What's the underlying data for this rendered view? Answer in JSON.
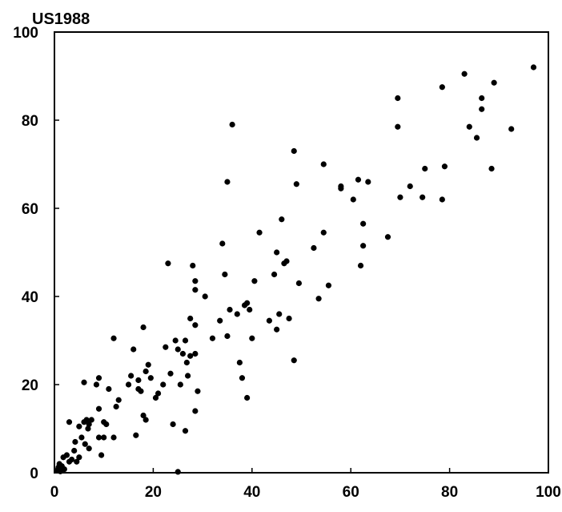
{
  "chart_data": {
    "type": "scatter",
    "title": "",
    "xlabel": "",
    "ylabel": "US1988",
    "xlim": [
      0,
      100
    ],
    "ylim": [
      0,
      100
    ],
    "xticks": [
      "0",
      "20",
      "40",
      "60",
      "80",
      "100"
    ],
    "yticks": [
      "0",
      "20",
      "40",
      "60",
      "80",
      "100"
    ],
    "grid": false,
    "legend": "none",
    "marker_color": "#000000",
    "series": [
      {
        "points": [
          [
            0.5,
            0.5
          ],
          [
            0.8,
            1.2
          ],
          [
            1,
            2
          ],
          [
            1.2,
            0.3
          ],
          [
            1.5,
            1.5
          ],
          [
            2,
            0.8
          ],
          [
            1.8,
            3.5
          ],
          [
            2.5,
            4
          ],
          [
            3,
            2.5
          ],
          [
            3.5,
            3
          ],
          [
            3,
            11.5
          ],
          [
            4,
            5
          ],
          [
            4.2,
            7
          ],
          [
            4.5,
            2.5
          ],
          [
            5,
            10.5
          ],
          [
            5,
            3.5
          ],
          [
            5.5,
            8
          ],
          [
            6,
            11.5
          ],
          [
            6.2,
            6.5
          ],
          [
            6.5,
            12
          ],
          [
            6.8,
            10
          ],
          [
            7,
            11
          ],
          [
            7.5,
            12
          ],
          [
            6,
            20.5
          ],
          [
            7,
            5.5
          ],
          [
            8.5,
            20
          ],
          [
            9,
            21.5
          ],
          [
            9.5,
            4
          ],
          [
            9,
            8
          ],
          [
            9,
            14.5
          ],
          [
            10,
            8
          ],
          [
            10,
            11.5
          ],
          [
            11,
            19
          ],
          [
            10.5,
            11
          ],
          [
            12,
            30.5
          ],
          [
            12.5,
            15
          ],
          [
            13,
            16.5
          ],
          [
            12,
            8
          ],
          [
            15,
            20
          ],
          [
            15.5,
            22
          ],
          [
            16,
            28
          ],
          [
            16.5,
            8.5
          ],
          [
            17,
            19
          ],
          [
            17,
            21
          ],
          [
            17.5,
            18.5
          ],
          [
            18,
            33
          ],
          [
            18,
            13
          ],
          [
            18.5,
            23
          ],
          [
            19,
            24.5
          ],
          [
            18.5,
            12
          ],
          [
            19.5,
            21.5
          ],
          [
            20.5,
            17
          ],
          [
            21,
            18
          ],
          [
            22,
            20
          ],
          [
            22.5,
            28.5
          ],
          [
            23,
            47.5
          ],
          [
            23.5,
            22.5
          ],
          [
            24,
            11
          ],
          [
            24.5,
            30
          ],
          [
            25,
            28
          ],
          [
            25,
            0.2
          ],
          [
            25.5,
            20
          ],
          [
            26,
            27
          ],
          [
            26.5,
            9.5
          ],
          [
            26.5,
            30
          ],
          [
            26.8,
            25
          ],
          [
            27,
            22
          ],
          [
            27.5,
            26.5
          ],
          [
            27.5,
            35
          ],
          [
            28,
            47
          ],
          [
            28.5,
            43.5
          ],
          [
            28.5,
            41.5
          ],
          [
            28.5,
            33.5
          ],
          [
            28.5,
            27
          ],
          [
            28.5,
            14
          ],
          [
            29,
            18.5
          ],
          [
            30.5,
            40
          ],
          [
            32,
            30.5
          ],
          [
            33.5,
            34.5
          ],
          [
            34,
            52
          ],
          [
            34.5,
            45
          ],
          [
            35,
            66
          ],
          [
            35,
            31
          ],
          [
            35.5,
            37
          ],
          [
            36,
            79
          ],
          [
            37,
            36
          ],
          [
            37.5,
            25
          ],
          [
            38,
            21.5
          ],
          [
            38.5,
            38
          ],
          [
            39,
            17
          ],
          [
            39,
            38.5
          ],
          [
            39.5,
            37
          ],
          [
            40,
            30.5
          ],
          [
            40.5,
            43.5
          ],
          [
            41.5,
            54.5
          ],
          [
            43.5,
            34.5
          ],
          [
            44.5,
            45
          ],
          [
            45,
            50
          ],
          [
            45,
            32.5
          ],
          [
            45.5,
            36
          ],
          [
            46,
            57.5
          ],
          [
            46.5,
            47.5
          ],
          [
            47,
            48
          ],
          [
            47.5,
            35
          ],
          [
            48.5,
            25.5
          ],
          [
            48.5,
            73
          ],
          [
            49,
            65.5
          ],
          [
            49.5,
            43
          ],
          [
            52.5,
            51
          ],
          [
            53.5,
            39.5
          ],
          [
            54.5,
            54.5
          ],
          [
            54.5,
            70
          ],
          [
            55.5,
            42.5
          ],
          [
            58,
            64.5
          ],
          [
            58,
            65
          ],
          [
            60.5,
            62
          ],
          [
            61.5,
            66.5
          ],
          [
            62,
            47
          ],
          [
            62.5,
            51.5
          ],
          [
            62.5,
            56.5
          ],
          [
            63.5,
            66
          ],
          [
            67.5,
            53.5
          ],
          [
            69.5,
            85
          ],
          [
            69.5,
            78.5
          ],
          [
            70,
            62.5
          ],
          [
            72,
            65
          ],
          [
            74.5,
            62.5
          ],
          [
            75,
            69
          ],
          [
            78.5,
            62
          ],
          [
            78.5,
            87.5
          ],
          [
            79,
            69.5
          ],
          [
            83,
            90.5
          ],
          [
            84,
            78.5
          ],
          [
            85.5,
            76
          ],
          [
            86.5,
            82.5
          ],
          [
            86.5,
            85
          ],
          [
            88.5,
            69
          ],
          [
            89,
            88.5
          ],
          [
            92.5,
            78
          ],
          [
            97,
            92
          ]
        ]
      }
    ]
  }
}
